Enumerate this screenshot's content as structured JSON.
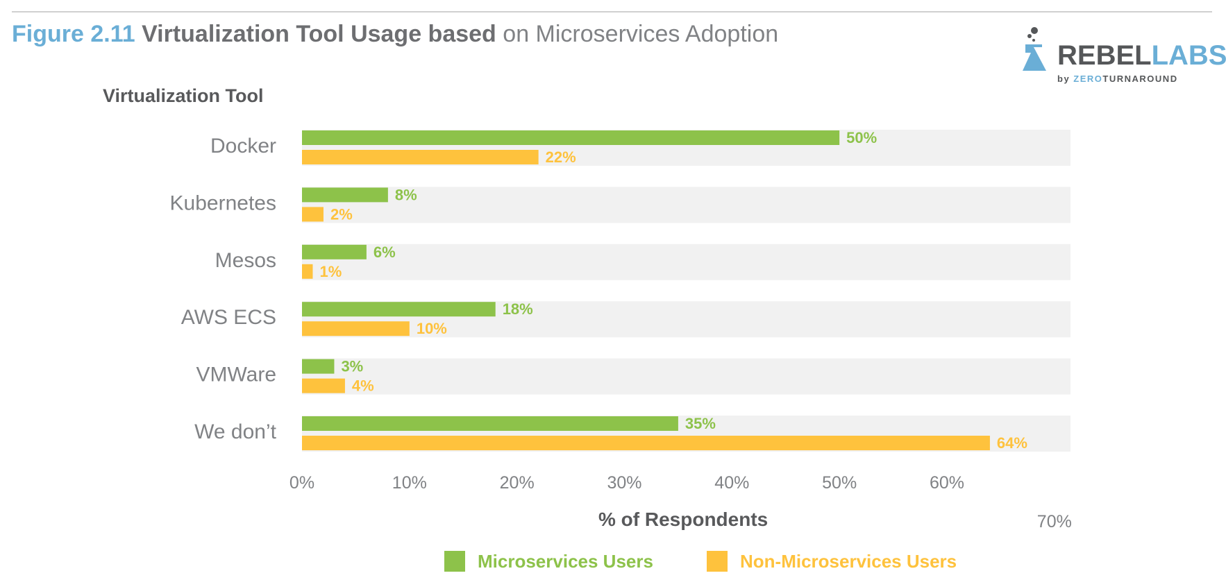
{
  "header": {
    "fig_num": "Figure 2.11",
    "title_bold": "Virtualization Tool Usage based",
    "title_rest": "on Microservices Adoption"
  },
  "logo": {
    "brand_a": "REBEL",
    "brand_b": "LABS",
    "by": "by",
    "zero": "ZERO",
    "turnaround": "TURNAROUND"
  },
  "colors": {
    "microservices": "#8dc24a",
    "non_microservices": "#fec23d",
    "band": "#f1f1f1",
    "axis_text": "#808285"
  },
  "chart_data": {
    "type": "bar",
    "orientation": "horizontal",
    "category_axis_title": "Virtualization Tool",
    "xlabel": "% of Respondents",
    "categories": [
      "Docker",
      "Kubernetes",
      "Mesos",
      "AWS ECS",
      "VMWare",
      "We don’t"
    ],
    "series": [
      {
        "name": "Microservices Users",
        "values": [
          50,
          8,
          6,
          18,
          3,
          35
        ],
        "labels": [
          "50%",
          "8%",
          "6%",
          "18%",
          "3%",
          "35%"
        ]
      },
      {
        "name": "Non-Microservices Users",
        "values": [
          22,
          2,
          1,
          10,
          4,
          64
        ],
        "labels": [
          "22%",
          "2%",
          "1%",
          "10%",
          "4%",
          "64%"
        ]
      }
    ],
    "xlim": [
      0,
      70
    ],
    "x_ticks": [
      0,
      10,
      20,
      30,
      40,
      50,
      60,
      70
    ],
    "x_tick_labels": [
      "0%",
      "10%",
      "20%",
      "30%",
      "40%",
      "50%",
      "60%",
      "70%"
    ],
    "legend_position": "bottom"
  }
}
